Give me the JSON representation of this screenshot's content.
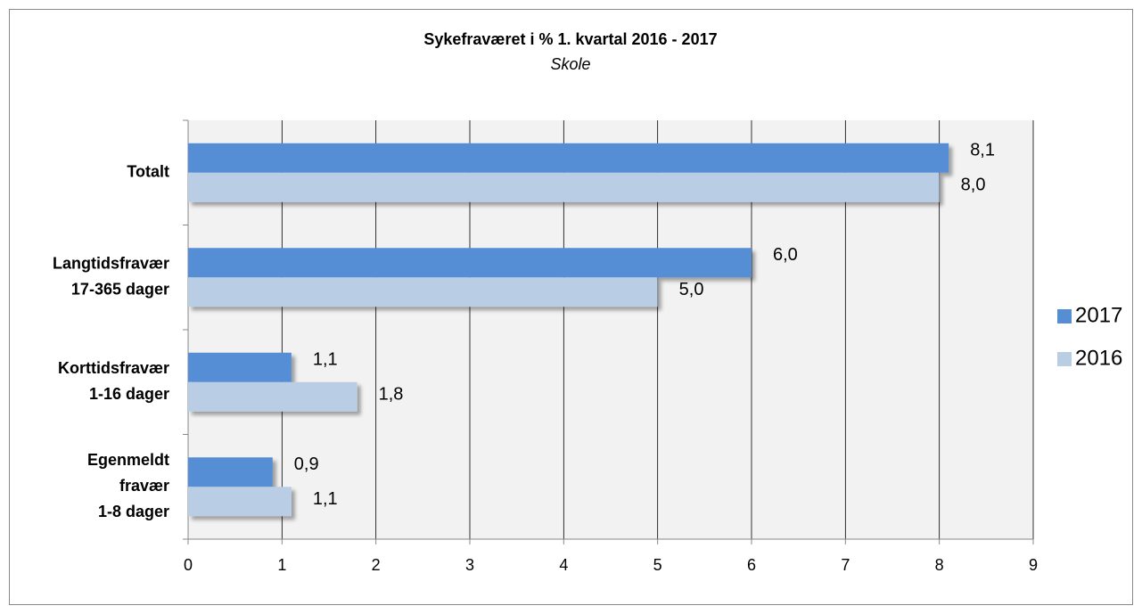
{
  "chart_data": {
    "type": "bar",
    "orientation": "horizontal",
    "title": "Sykefraværet i %  1. kvartal 2016 - 2017",
    "subtitle": "Skole",
    "categories": [
      [
        "Totalt"
      ],
      [
        "Langtidsfravær",
        "17-365 dager"
      ],
      [
        "Korttidsfravær",
        "1-16 dager"
      ],
      [
        "Egenmeldt",
        "fravær",
        "1-8 dager"
      ]
    ],
    "series": [
      {
        "name": "2017",
        "color": "#558ed5",
        "values": [
          8.1,
          6.0,
          1.1,
          0.9
        ],
        "value_labels": [
          "8,1",
          "6,0",
          "1,1",
          "0,9"
        ]
      },
      {
        "name": "2016",
        "color": "#b9cde5",
        "values": [
          8.0,
          5.0,
          1.8,
          1.1
        ],
        "value_labels": [
          "8,0",
          "5,0",
          "1,8",
          "1,1"
        ]
      }
    ],
    "xlim": [
      0,
      9
    ],
    "xticks": [
      0,
      1,
      2,
      3,
      4,
      5,
      6,
      7,
      8,
      9
    ],
    "grid": true,
    "legend": "right"
  }
}
